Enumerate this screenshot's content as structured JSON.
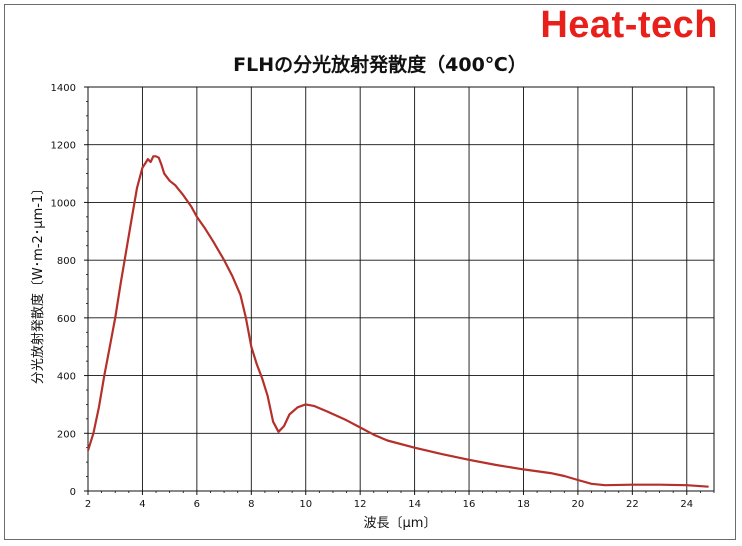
{
  "brand": {
    "logo_text": "Heat-tech",
    "color": "#e8201c"
  },
  "chart_data": {
    "type": "line",
    "title": "FLHの分光放射発散度（400℃）",
    "xlabel": "波長〔μm〕",
    "ylabel": "分光放射発散度〔W･m-2･μm-1〕",
    "xlim": [
      2,
      25
    ],
    "ylim": [
      0,
      1400
    ],
    "xticks": [
      "2",
      "4",
      "6",
      "8",
      "10",
      "12",
      "14",
      "16",
      "18",
      "20",
      "22",
      "24"
    ],
    "yticks": [
      "0",
      "200",
      "400",
      "600",
      "800",
      "1000",
      "1200",
      "1400"
    ],
    "grid": true,
    "line_color": "#b5302a",
    "series": [
      {
        "points": [
          [
            2.0,
            140
          ],
          [
            2.2,
            200
          ],
          [
            2.4,
            290
          ],
          [
            2.6,
            400
          ],
          [
            2.8,
            500
          ],
          [
            3.0,
            600
          ],
          [
            3.2,
            720
          ],
          [
            3.4,
            830
          ],
          [
            3.6,
            940
          ],
          [
            3.8,
            1050
          ],
          [
            4.0,
            1120
          ],
          [
            4.1,
            1135
          ],
          [
            4.2,
            1150
          ],
          [
            4.3,
            1140
          ],
          [
            4.4,
            1160
          ],
          [
            4.5,
            1160
          ],
          [
            4.6,
            1155
          ],
          [
            4.7,
            1130
          ],
          [
            4.8,
            1100
          ],
          [
            5.0,
            1075
          ],
          [
            5.2,
            1060
          ],
          [
            5.5,
            1025
          ],
          [
            5.8,
            985
          ],
          [
            6.0,
            950
          ],
          [
            6.3,
            910
          ],
          [
            6.6,
            865
          ],
          [
            7.0,
            800
          ],
          [
            7.3,
            745
          ],
          [
            7.6,
            680
          ],
          [
            7.8,
            600
          ],
          [
            8.0,
            500
          ],
          [
            8.2,
            440
          ],
          [
            8.4,
            390
          ],
          [
            8.6,
            330
          ],
          [
            8.8,
            240
          ],
          [
            9.0,
            205
          ],
          [
            9.2,
            225
          ],
          [
            9.4,
            265
          ],
          [
            9.7,
            290
          ],
          [
            10.0,
            300
          ],
          [
            10.3,
            295
          ],
          [
            10.8,
            275
          ],
          [
            11.5,
            245
          ],
          [
            12.0,
            220
          ],
          [
            12.5,
            195
          ],
          [
            13.0,
            175
          ],
          [
            14.0,
            150
          ],
          [
            15.0,
            128
          ],
          [
            16.0,
            108
          ],
          [
            17.0,
            90
          ],
          [
            18.0,
            75
          ],
          [
            19.0,
            62
          ],
          [
            19.5,
            52
          ],
          [
            20.0,
            38
          ],
          [
            20.5,
            25
          ],
          [
            21.0,
            20
          ],
          [
            22.0,
            22
          ],
          [
            23.0,
            22
          ],
          [
            24.0,
            20
          ],
          [
            24.8,
            15
          ]
        ]
      }
    ]
  }
}
